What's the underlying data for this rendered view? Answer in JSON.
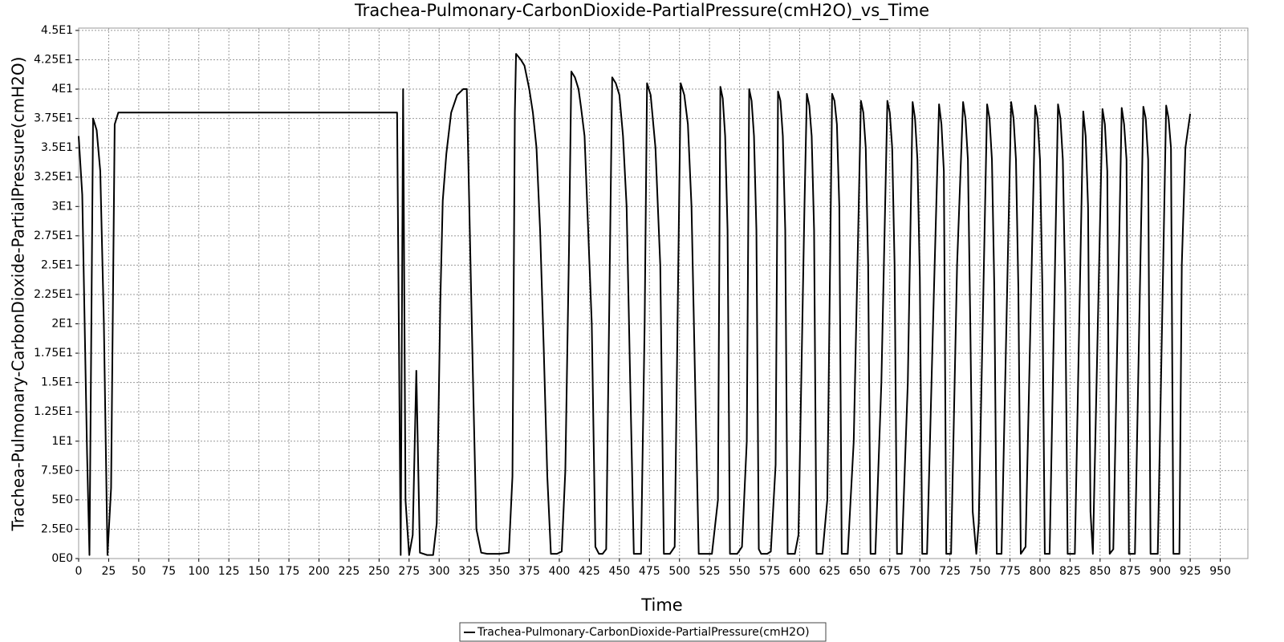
{
  "chart_data": {
    "type": "line",
    "title": "Trachea-Pulmonary-CarbonDioxide-PartialPressure(cmH2O)_vs_Time",
    "x_label": "Time",
    "y_label": "Trachea-Pulmonary-CarbonDioxide-PartialPressure(cmH2O)",
    "x": [
      0,
      3,
      7,
      9,
      12,
      15,
      18,
      21,
      24,
      27,
      30,
      33,
      265,
      268,
      270,
      272,
      275,
      278,
      281,
      284,
      290,
      295,
      298,
      301,
      303,
      306,
      310,
      315,
      320,
      323,
      328,
      331,
      335,
      340,
      350,
      358,
      361,
      363,
      364,
      368,
      371,
      375,
      378,
      381,
      384,
      387,
      390,
      393,
      398,
      402,
      405,
      408,
      410,
      413,
      416,
      418,
      421,
      424,
      427,
      430,
      433,
      436,
      439,
      442,
      444,
      447,
      450,
      453,
      456,
      459,
      462,
      468,
      471,
      473,
      476,
      480,
      484,
      487,
      492,
      496,
      499,
      501,
      504,
      507,
      510,
      513,
      516,
      522,
      527,
      532,
      534,
      536,
      538,
      540,
      542,
      548,
      552,
      556,
      558,
      560,
      562,
      564,
      566,
      568,
      573,
      576,
      580,
      582,
      584,
      586,
      588,
      590,
      596,
      599,
      604,
      606,
      608,
      610,
      612,
      614,
      619,
      623,
      627,
      629,
      631,
      633,
      635,
      640,
      645,
      651,
      653,
      655,
      657,
      659,
      663,
      668,
      673,
      675,
      677,
      679,
      681,
      685,
      690,
      694,
      696,
      698,
      700,
      702,
      706,
      711,
      716,
      718,
      720,
      722,
      726,
      731,
      736,
      738,
      740,
      742,
      744,
      747,
      749,
      756,
      758,
      760,
      762,
      764,
      768,
      776,
      778,
      780,
      782,
      784,
      788,
      796,
      798,
      800,
      802,
      804,
      808,
      815,
      817,
      819,
      821,
      823,
      829,
      836,
      838,
      840,
      842,
      844,
      852,
      854,
      856,
      858,
      861,
      868,
      870,
      872,
      874,
      879,
      886,
      888,
      890,
      892,
      898,
      905,
      907,
      909,
      911,
      916,
      918,
      921,
      925
    ],
    "series": [
      {
        "name": "Trachea-Pulmonary-CarbonDioxide-PartialPressure(cmH2O)",
        "color": "#000000",
        "values": [
          36,
          31,
          9,
          0.3,
          37.5,
          36.5,
          33,
          20,
          0.3,
          6,
          37,
          38,
          38,
          0.3,
          40,
          5,
          0.3,
          2,
          16,
          0.5,
          0.3,
          0.3,
          3,
          22,
          30.5,
          34.5,
          38,
          39.5,
          40,
          40,
          16,
          2.5,
          0.5,
          0.4,
          0.4,
          0.5,
          7,
          38,
          43,
          42.5,
          42,
          40,
          38,
          35,
          28,
          18,
          7,
          0.4,
          0.4,
          0.6,
          7.5,
          26,
          41.5,
          41,
          40,
          38.5,
          36,
          28,
          20,
          1,
          0.4,
          0.4,
          0.8,
          25,
          41,
          40.5,
          39.5,
          36,
          30,
          15,
          0.4,
          0.4,
          20,
          40.5,
          39.5,
          35,
          25,
          0.4,
          0.4,
          1,
          25,
          40.5,
          39.5,
          37,
          30,
          15,
          0.4,
          0.4,
          0.4,
          5,
          40.2,
          39.2,
          36,
          28,
          0.4,
          0.4,
          1,
          10,
          40,
          39,
          36,
          28,
          0.8,
          0.4,
          0.4,
          0.6,
          8,
          39.8,
          39,
          36,
          28,
          0.4,
          0.4,
          2,
          30,
          39.6,
          38.6,
          36,
          28,
          0.4,
          0.4,
          5,
          39.6,
          39,
          37,
          30,
          0.4,
          0.4,
          10,
          39,
          38,
          35,
          25,
          0.4,
          0.4,
          15,
          39,
          38,
          35,
          25,
          0.4,
          0.4,
          15,
          38.9,
          37.5,
          34,
          24,
          0.4,
          0.4,
          20,
          38.7,
          37,
          33,
          0.4,
          0.4,
          25,
          38.9,
          37.5,
          34,
          20,
          4,
          0.4,
          3,
          38.7,
          37.5,
          34,
          23,
          0.4,
          0.4,
          38.9,
          37.5,
          34,
          23,
          0.4,
          1,
          38.6,
          37.5,
          34,
          23,
          0.4,
          0.4,
          38.7,
          37.5,
          34,
          23,
          0.4,
          0.4,
          38.1,
          36,
          30,
          4,
          0.4,
          38.3,
          37,
          33,
          0.4,
          0.8,
          38.4,
          37,
          34,
          0.4,
          0.4,
          38.5,
          37.5,
          34,
          0.4,
          0.4,
          38.6,
          37.5,
          35,
          0.4,
          0.4,
          25,
          35,
          37.9
        ]
      }
    ],
    "xlim": [
      0,
      973
    ],
    "ylim": [
      0,
      45.2
    ],
    "xticks": [
      0,
      25,
      50,
      75,
      100,
      125,
      150,
      175,
      200,
      225,
      250,
      275,
      300,
      325,
      350,
      375,
      400,
      425,
      450,
      475,
      500,
      525,
      550,
      575,
      600,
      625,
      650,
      675,
      700,
      725,
      750,
      775,
      800,
      825,
      850,
      875,
      900,
      925,
      950
    ],
    "yticks": [
      {
        "value": 0,
        "label": "0E0"
      },
      {
        "value": 2.5,
        "label": "2.5E0"
      },
      {
        "value": 5,
        "label": "5E0"
      },
      {
        "value": 7.5,
        "label": "7.5E0"
      },
      {
        "value": 10,
        "label": "1E1"
      },
      {
        "value": 12.5,
        "label": "1.25E1"
      },
      {
        "value": 15,
        "label": "1.5E1"
      },
      {
        "value": 17.5,
        "label": "1.75E1"
      },
      {
        "value": 20,
        "label": "2E1"
      },
      {
        "value": 22.5,
        "label": "2.25E1"
      },
      {
        "value": 25,
        "label": "2.5E1"
      },
      {
        "value": 27.5,
        "label": "2.75E1"
      },
      {
        "value": 30,
        "label": "3E1"
      },
      {
        "value": 32.5,
        "label": "3.25E1"
      },
      {
        "value": 35,
        "label": "3.5E1"
      },
      {
        "value": 37.5,
        "label": "3.75E1"
      },
      {
        "value": 40,
        "label": "4E1"
      },
      {
        "value": 42.5,
        "label": "4.25E1"
      },
      {
        "value": 45,
        "label": "4.5E1"
      }
    ],
    "grid": true
  }
}
